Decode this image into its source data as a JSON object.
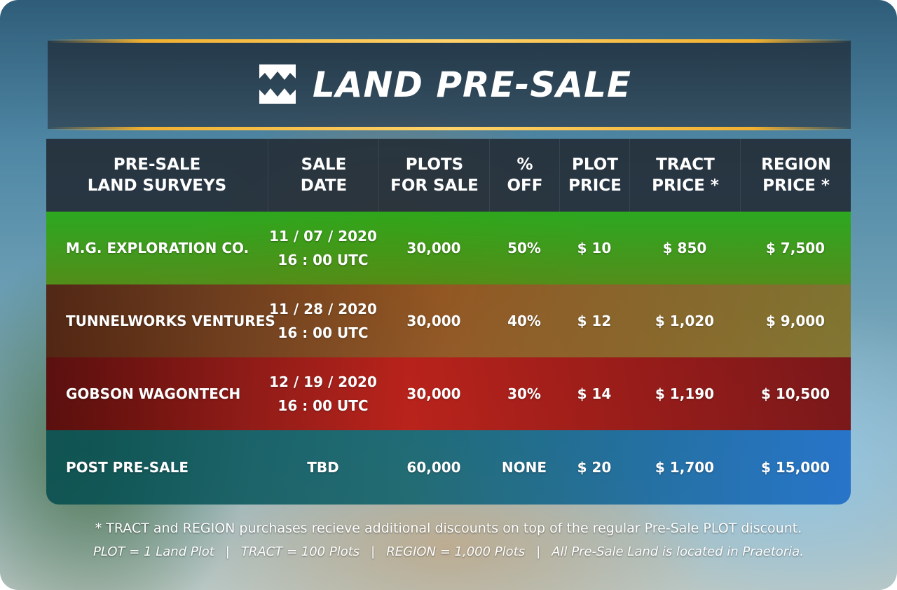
{
  "header": {
    "title": "LAND PRE-SALE"
  },
  "table": {
    "columns": [
      "PRE-SALE\nLAND SURVEYS",
      "SALE\nDATE",
      "PLOTS\nFOR SALE",
      "%\nOFF",
      "PLOT\nPRICE",
      "TRACT\nPRICE *",
      "REGION\nPRICE *"
    ],
    "rows": [
      {
        "survey": "M.G. EXPLORATION CO.",
        "date": "11 / 07 / 2020\n16 : 00 UTC",
        "plots": "30,000",
        "off": "50%",
        "plot_price": "$ 10",
        "tract_price": "$ 850",
        "region_price": "$ 7,500"
      },
      {
        "survey": "TUNNELWORKS VENTURES",
        "date": "11 / 28 / 2020\n16 : 00 UTC",
        "plots": "30,000",
        "off": "40%",
        "plot_price": "$ 12",
        "tract_price": "$ 1,020",
        "region_price": "$ 9,000"
      },
      {
        "survey": "GOBSON WAGONTECH",
        "date": "12 / 19 / 2020\n16 : 00 UTC",
        "plots": "30,000",
        "off": "30%",
        "plot_price": "$ 14",
        "tract_price": "$ 1,190",
        "region_price": "$ 10,500"
      },
      {
        "survey": "POST PRE-SALE",
        "date": "TBD",
        "plots": "60,000",
        "off": "NONE",
        "plot_price": "$ 20",
        "tract_price": "$ 1,700",
        "region_price": "$ 15,000"
      }
    ]
  },
  "footer": {
    "note": "* TRACT and REGION purchases recieve additional discounts on top of the regular Pre-Sale PLOT discount.",
    "legend": [
      "PLOT = 1 Land Plot",
      "TRACT = 100 Plots",
      "REGION = 1,000 Plots",
      "All Pre-Sale Land is located in Praetoria."
    ],
    "separator": "|"
  },
  "colors": {
    "gold": "#f0b030",
    "header_bg": "#222c36",
    "row_green": "#28aa14",
    "row_orange": "#965014",
    "row_red": "#be140a",
    "row_blue": "#1e6eb4"
  },
  "icons": {
    "logo": "fang-logo-icon"
  }
}
